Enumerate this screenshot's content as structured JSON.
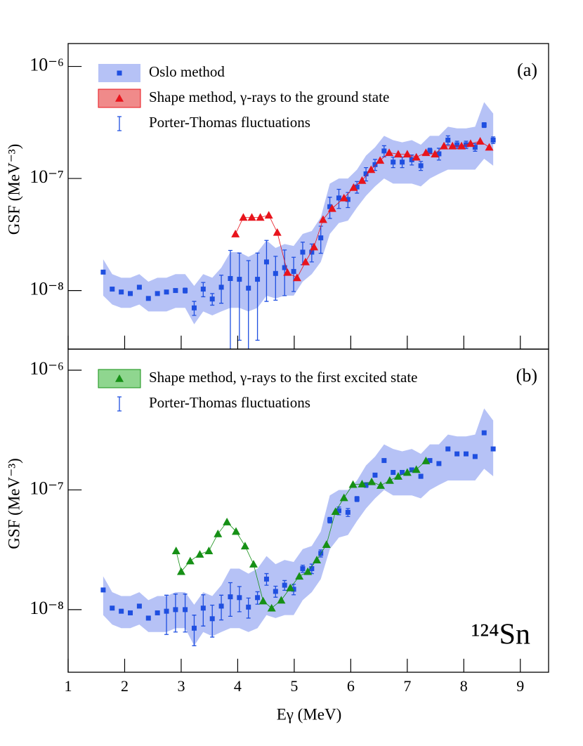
{
  "chart_data": [
    {
      "type": "scatter",
      "annotation": "(a)",
      "ylabel": "GSF (MeV⁻³)",
      "log_y": true,
      "legend": "upper left",
      "xlim": [
        1,
        9.5
      ],
      "ylim": [
        3e-09,
        1.6e-06
      ],
      "yticks": [
        {
          "value": 1e-08,
          "label": "10⁻⁸"
        },
        {
          "value": 1e-07,
          "label": "10⁻⁷"
        },
        {
          "value": 1e-06,
          "label": "10⁻⁶"
        }
      ],
      "series": [
        {
          "name": "Oslo method",
          "error_name": "Porter-Thomas fluctuations",
          "color": "#1f4fe0",
          "band_color": "#b6c2f6",
          "x": [
            1.62,
            1.78,
            1.94,
            2.1,
            2.26,
            2.42,
            2.58,
            2.74,
            2.9,
            3.07,
            3.23,
            3.39,
            3.55,
            3.71,
            3.87,
            4.03,
            4.19,
            4.35,
            4.51,
            4.67,
            4.83,
            4.99,
            5.15,
            5.31,
            5.47,
            5.63,
            5.79,
            5.95,
            6.11,
            6.27,
            6.43,
            6.59,
            6.75,
            6.91,
            7.08,
            7.24,
            7.4,
            7.56,
            7.72,
            7.88,
            8.04,
            8.2,
            8.36,
            8.52
          ],
          "values": [
            1.46e-08,
            1.03e-08,
            9.7e-09,
            9.4e-09,
            1.07e-08,
            8.5e-09,
            9.4e-09,
            9.7e-09,
            1e-08,
            1e-08,
            7e-09,
            1.03e-08,
            8.4e-09,
            1.07e-08,
            1.28e-08,
            1.26e-08,
            1.05e-08,
            1.26e-08,
            1.8e-08,
            1.42e-08,
            1.6e-08,
            1.48e-08,
            2.2e-08,
            2.2e-08,
            2.95e-08,
            5.6e-08,
            6.7e-08,
            6.5e-08,
            8.4e-08,
            1.1e-07,
            1.33e-07,
            1.76e-07,
            1.4e-07,
            1.4e-07,
            1.47e-07,
            1.3e-07,
            1.76e-07,
            1.66e-07,
            2.2e-07,
            2e-07,
            2e-07,
            1.9e-07,
            3e-07,
            2.2e-07
          ],
          "errors": [
            4e-10,
            3e-10,
            3e-10,
            3e-10,
            3e-10,
            3e-10,
            3e-10,
            3e-10,
            3e-10,
            5e-10,
            1e-09,
            1.5e-09,
            1e-09,
            3e-09,
            1e-08,
            9e-09,
            8e-09,
            9e-09,
            1e-08,
            6e-09,
            7e-09,
            5e-09,
            5e-09,
            4e-09,
            8e-09,
            1.2e-08,
            1.3e-08,
            1e-08,
            1e-08,
            1.5e-08,
            1.5e-08,
            2e-08,
            1.5e-08,
            1.5e-08,
            1.5e-08,
            1.2e-08,
            1e-08,
            2e-08,
            2e-08,
            1.5e-08,
            1.5e-08,
            1.5e-08,
            1.5e-08,
            1.5e-08
          ],
          "band_lower": [
            9e-09,
            7.5e-09,
            7e-09,
            7e-09,
            7.5e-09,
            6.5e-09,
            6.5e-09,
            6.5e-09,
            7e-09,
            7e-09,
            5e-09,
            6.5e-09,
            6e-09,
            6.5e-09,
            7e-09,
            7e-09,
            6.5e-09,
            7e-09,
            9e-09,
            8.5e-09,
            9e-09,
            9e-09,
            1.2e-08,
            1.4e-08,
            1.8e-08,
            3.2e-08,
            4e-08,
            4.2e-08,
            5.5e-08,
            7e-08,
            8.5e-08,
            1e-07,
            9e-08,
            9e-08,
            9e-08,
            8.5e-08,
            1e-07,
            1.1e-07,
            1.2e-07,
            1.2e-07,
            1.2e-07,
            1.2e-07,
            1.5e-07,
            1.3e-07
          ],
          "band_upper": [
            1.9e-08,
            1.4e-08,
            1.3e-08,
            1.3e-08,
            1.4e-08,
            1.2e-08,
            1.3e-08,
            1.3e-08,
            1.4e-08,
            1.4e-08,
            1.1e-08,
            1.4e-08,
            1.3e-08,
            1.6e-08,
            2.2e-08,
            2.2e-08,
            2e-08,
            2.2e-08,
            2.8e-08,
            2.4e-08,
            2.6e-08,
            2.5e-08,
            3.2e-08,
            3.4e-08,
            4.5e-08,
            9e-08,
            1e-07,
            1e-07,
            1.2e-07,
            1.6e-07,
            1.9e-07,
            2.4e-07,
            2.2e-07,
            2.1e-07,
            2.2e-07,
            2e-07,
            2.4e-07,
            2.4e-07,
            2.9e-07,
            2.8e-07,
            2.8e-07,
            2.9e-07,
            4.8e-07,
            3.8e-07
          ]
        },
        {
          "name": "Shape method, γ-rays to the ground state",
          "color": "#e8141c",
          "box_color": "#f08a8a",
          "x": [
            3.96,
            4.1,
            4.25,
            4.4,
            4.55,
            4.7,
            4.88,
            5.05,
            5.2,
            5.35,
            5.51,
            5.67,
            5.88,
            6.05,
            6.2,
            6.36,
            6.52,
            6.68,
            6.84,
            7.0,
            7.16,
            7.33,
            7.49,
            7.65,
            7.8,
            7.96,
            8.12,
            8.29,
            8.45
          ],
          "values": [
            3.2e-08,
            4.5e-08,
            4.5e-08,
            4.5e-08,
            4.7e-08,
            3.3e-08,
            1.45e-08,
            1.3e-08,
            1.8e-08,
            2.45e-08,
            4.3e-08,
            5.4e-08,
            6.7e-08,
            8.3e-08,
            9.6e-08,
            1.2e-07,
            1.45e-07,
            1.7e-07,
            1.65e-07,
            1.65e-07,
            1.55e-07,
            1.7e-07,
            1.65e-07,
            1.95e-07,
            1.95e-07,
            1.95e-07,
            2.05e-07,
            2.15e-07,
            1.9e-07
          ]
        }
      ]
    },
    {
      "type": "scatter",
      "annotation": "(b)",
      "note": "¹²⁴Sn",
      "ylabel": "GSF (MeV⁻³)",
      "xlabel": "Eγ (MeV)",
      "log_y": true,
      "legend": "upper left",
      "xlim": [
        1,
        9.5
      ],
      "xticks": [
        1,
        2,
        3,
        4,
        5,
        6,
        7,
        8,
        9
      ],
      "ylim": [
        3e-09,
        1.5e-06
      ],
      "yticks": [
        {
          "value": 1e-08,
          "label": "10⁻⁸"
        },
        {
          "value": 1e-07,
          "label": "10⁻⁷"
        },
        {
          "value": 1e-06,
          "label": "10⁻⁶"
        }
      ],
      "series": [
        {
          "error_name": "Porter-Thomas fluctuations",
          "color": "#1f4fe0",
          "band_color": "#b6c2f6",
          "x": [
            1.62,
            1.78,
            1.94,
            2.1,
            2.26,
            2.42,
            2.58,
            2.74,
            2.9,
            3.07,
            3.23,
            3.39,
            3.55,
            3.71,
            3.87,
            4.03,
            4.19,
            4.35,
            4.51,
            4.67,
            4.83,
            4.99,
            5.15,
            5.31,
            5.47,
            5.63,
            5.79,
            5.95,
            6.11,
            6.27,
            6.43,
            6.59,
            6.75,
            6.91,
            7.08,
            7.24,
            7.4,
            7.56,
            7.72,
            7.88,
            8.04,
            8.2,
            8.36,
            8.52
          ],
          "values": [
            1.46e-08,
            1.03e-08,
            9.7e-09,
            9.4e-09,
            1.07e-08,
            8.5e-09,
            9.4e-09,
            9.7e-09,
            1e-08,
            1e-08,
            7e-09,
            1.03e-08,
            8.4e-09,
            1.07e-08,
            1.28e-08,
            1.26e-08,
            1.05e-08,
            1.26e-08,
            1.8e-08,
            1.42e-08,
            1.6e-08,
            1.48e-08,
            2.2e-08,
            2.2e-08,
            2.95e-08,
            5.6e-08,
            6.7e-08,
            6.5e-08,
            8.4e-08,
            1.1e-07,
            1.33e-07,
            1.76e-07,
            1.4e-07,
            1.4e-07,
            1.47e-07,
            1.3e-07,
            1.76e-07,
            1.66e-07,
            2.2e-07,
            2e-07,
            2e-07,
            1.9e-07,
            3e-07,
            2.2e-07
          ],
          "errors": [
            3e-10,
            3e-10,
            3e-10,
            3e-10,
            3e-10,
            3e-10,
            3e-10,
            3.5e-09,
            3.5e-09,
            3.5e-09,
            2e-09,
            3e-09,
            2.5e-09,
            2.5e-09,
            4e-09,
            3e-09,
            2e-09,
            1.5e-09,
            2e-09,
            1.5e-09,
            1.5e-09,
            1.5e-09,
            1.5e-09,
            2e-09,
            2e-09,
            3e-09,
            5e-09,
            5e-09,
            4e-09,
            5e-09,
            5e-09,
            6e-09,
            5e-09,
            5e-09,
            5e-09,
            5e-09,
            5e-09,
            5e-09,
            6e-09,
            5e-09,
            5e-09,
            5e-09,
            6e-09,
            5e-09
          ],
          "band_lower": [
            9e-09,
            7.5e-09,
            7e-09,
            7e-09,
            7.5e-09,
            6.5e-09,
            6.5e-09,
            6.5e-09,
            7e-09,
            7e-09,
            5e-09,
            6.5e-09,
            6e-09,
            6.5e-09,
            7e-09,
            7e-09,
            6.5e-09,
            7e-09,
            9e-09,
            8.5e-09,
            9e-09,
            9e-09,
            1.2e-08,
            1.4e-08,
            1.8e-08,
            3.2e-08,
            4e-08,
            4.2e-08,
            5.5e-08,
            7e-08,
            8.5e-08,
            1e-07,
            9e-08,
            9e-08,
            9e-08,
            8.5e-08,
            1e-07,
            1.1e-07,
            1.2e-07,
            1.2e-07,
            1.2e-07,
            1.2e-07,
            1.5e-07,
            1.3e-07
          ],
          "band_upper": [
            1.9e-08,
            1.4e-08,
            1.3e-08,
            1.3e-08,
            1.4e-08,
            1.2e-08,
            1.3e-08,
            1.3e-08,
            1.4e-08,
            1.4e-08,
            1.1e-08,
            1.4e-08,
            1.3e-08,
            1.6e-08,
            2.2e-08,
            2.2e-08,
            2e-08,
            2.2e-08,
            2.8e-08,
            2.4e-08,
            2.6e-08,
            2.5e-08,
            3.2e-08,
            3.4e-08,
            4.5e-08,
            9e-08,
            1e-07,
            1e-07,
            1.2e-07,
            1.6e-07,
            1.9e-07,
            2.4e-07,
            2.2e-07,
            2.1e-07,
            2.2e-07,
            2e-07,
            2.4e-07,
            2.4e-07,
            2.9e-07,
            2.8e-07,
            2.8e-07,
            2.9e-07,
            4.8e-07,
            3.8e-07
          ]
        },
        {
          "name": "Shape method, γ-rays to the first excited state",
          "color": "#169016",
          "box_color": "#8fd68f",
          "x": [
            2.91,
            3.0,
            3.16,
            3.33,
            3.49,
            3.65,
            3.81,
            3.97,
            4.13,
            4.28,
            4.45,
            4.6,
            4.77,
            4.93,
            5.09,
            5.24,
            5.4,
            5.57,
            5.73,
            5.88,
            6.04,
            6.2,
            6.37,
            6.53,
            6.69,
            6.84,
            7.0,
            7.16,
            7.33
          ],
          "values": [
            3.1e-08,
            2.08e-08,
            2.55e-08,
            2.9e-08,
            3.1e-08,
            4.3e-08,
            5.4e-08,
            4.5e-08,
            3.4e-08,
            2.4e-08,
            1.18e-08,
            1.03e-08,
            1.2e-08,
            1.52e-08,
            1.9e-08,
            2.08e-08,
            2.6e-08,
            3.5e-08,
            6.6e-08,
            8.6e-08,
            1.11e-07,
            1.12e-07,
            1.17e-07,
            1.09e-07,
            1.2e-07,
            1.3e-07,
            1.4e-07,
            1.48e-07,
            1.75e-07
          ]
        }
      ]
    }
  ]
}
